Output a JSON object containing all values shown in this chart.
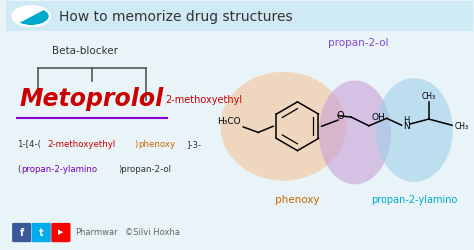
{
  "bg_color": "#e8f4f8",
  "title_text": "How to memorize drug structures",
  "title_color": "#333333",
  "title_fontsize": 10,
  "metoprolol_color": "#cc0000",
  "beta_blocker_color": "#333333",
  "iupac_color_default": "#333333",
  "iupac_color_methoxyethyl": "#cc0000",
  "iupac_color_phenoxy": "#cc6600",
  "iupac_color_propan": "#7700bb",
  "label_2methoxyethyl": "2-methoxyethyl",
  "label_2methoxyethyl_color": "#cc0000",
  "label_phenoxy": "phenoxy",
  "label_phenoxy_color": "#cc6600",
  "label_propan2ol": "propan-2-ol",
  "label_propan2ol_color": "#8844cc",
  "label_propan2ylamino": "propan-2-ylamino",
  "label_propan2ylamino_color": "#00aacc",
  "footer_pharmwar": "Pharmwar",
  "footer_copyright": "©Silvi Hoxha",
  "footer_color": "#666666"
}
